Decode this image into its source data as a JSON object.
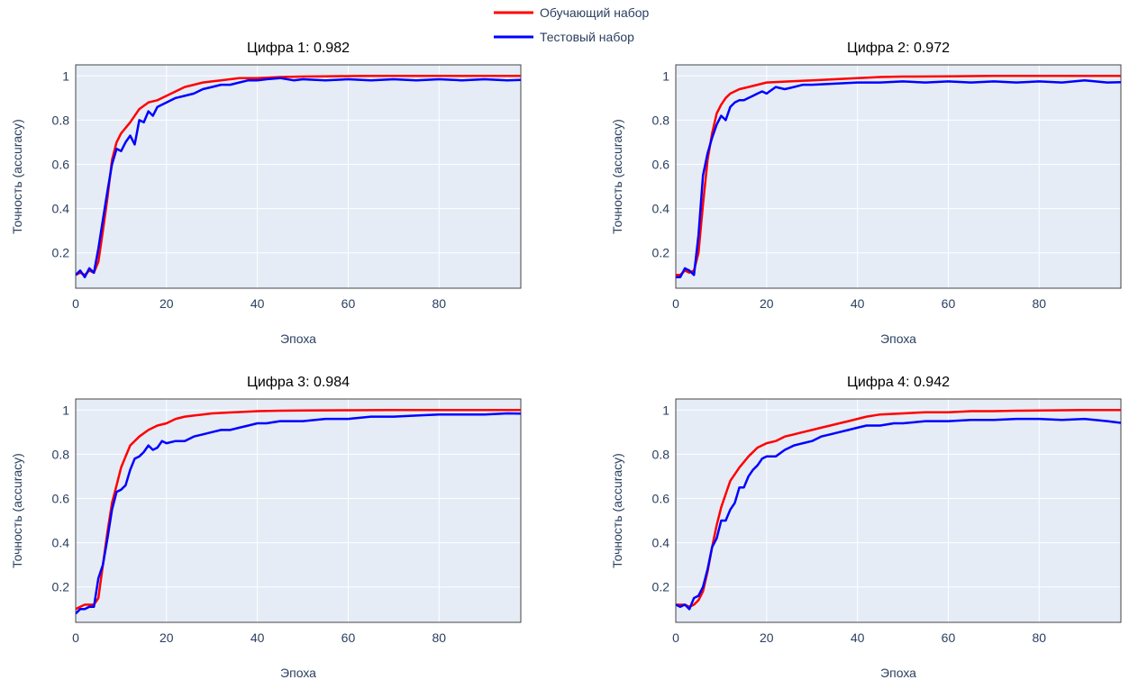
{
  "legend": {
    "position": "top-center",
    "items": [
      {
        "label": "Обучающий набор",
        "color": "#ff0000"
      },
      {
        "label": "Тестовый набор",
        "color": "#0000ff"
      }
    ]
  },
  "colors": {
    "plot_background": "#e5ecf6",
    "grid": "#ffffff",
    "axis_text": "#2a3f5f",
    "train": "#ff0000",
    "test": "#0000ff"
  },
  "chart_data": [
    {
      "type": "line",
      "title": "Цифра 1: 0.982",
      "xlabel": "Эпоха",
      "ylabel": "Точность (accuracy)",
      "xlim": [
        0,
        98
      ],
      "ylim": [
        0.04,
        1.05
      ],
      "xticks": [
        0,
        20,
        40,
        60,
        80
      ],
      "yticks": [
        0.2,
        0.4,
        0.6,
        0.8,
        1
      ],
      "ytick_labels": [
        "0.2",
        "0.4",
        "0.6",
        "0.8",
        "1"
      ],
      "grid": true,
      "series": [
        {
          "name": "Обучающий набор",
          "x": [
            0,
            1,
            2,
            3,
            4,
            5,
            6,
            7,
            8,
            9,
            10,
            12,
            14,
            16,
            18,
            20,
            22,
            24,
            26,
            28,
            30,
            32,
            34,
            36,
            38,
            40,
            45,
            50,
            55,
            60,
            65,
            70,
            75,
            80,
            85,
            90,
            95,
            98
          ],
          "values": [
            0.1,
            0.11,
            0.1,
            0.12,
            0.11,
            0.16,
            0.3,
            0.45,
            0.62,
            0.7,
            0.74,
            0.79,
            0.85,
            0.88,
            0.89,
            0.91,
            0.93,
            0.95,
            0.96,
            0.97,
            0.975,
            0.98,
            0.985,
            0.99,
            0.99,
            0.99,
            0.995,
            0.997,
            0.998,
            0.999,
            1.0,
            1.0,
            1.0,
            1.0,
            1.0,
            1.0,
            1.0,
            1.0
          ]
        },
        {
          "name": "Тестовый набор",
          "x": [
            0,
            1,
            2,
            3,
            4,
            5,
            6,
            7,
            8,
            9,
            10,
            11,
            12,
            13,
            14,
            15,
            16,
            17,
            18,
            20,
            22,
            24,
            26,
            28,
            30,
            32,
            34,
            36,
            38,
            40,
            42,
            45,
            48,
            50,
            55,
            60,
            65,
            70,
            75,
            80,
            85,
            90,
            95,
            98
          ],
          "values": [
            0.1,
            0.12,
            0.09,
            0.13,
            0.11,
            0.22,
            0.35,
            0.48,
            0.6,
            0.67,
            0.66,
            0.7,
            0.73,
            0.69,
            0.8,
            0.79,
            0.84,
            0.82,
            0.86,
            0.88,
            0.9,
            0.91,
            0.92,
            0.94,
            0.95,
            0.96,
            0.96,
            0.97,
            0.98,
            0.98,
            0.985,
            0.99,
            0.98,
            0.985,
            0.98,
            0.985,
            0.98,
            0.985,
            0.98,
            0.985,
            0.98,
            0.985,
            0.98,
            0.982
          ]
        }
      ]
    },
    {
      "type": "line",
      "title": "Цифра 2: 0.972",
      "xlabel": "Эпоха",
      "ylabel": "Точность (accuracy)",
      "xlim": [
        0,
        98
      ],
      "ylim": [
        0.04,
        1.05
      ],
      "xticks": [
        0,
        20,
        40,
        60,
        80
      ],
      "yticks": [
        0.2,
        0.4,
        0.6,
        0.8,
        1
      ],
      "ytick_labels": [
        "0.2",
        "0.4",
        "0.6",
        "0.8",
        "1"
      ],
      "grid": true,
      "series": [
        {
          "name": "Обучающий набор",
          "x": [
            0,
            1,
            2,
            3,
            4,
            5,
            6,
            7,
            8,
            9,
            10,
            11,
            12,
            14,
            16,
            18,
            20,
            25,
            30,
            35,
            40,
            45,
            50,
            60,
            70,
            80,
            90,
            98
          ],
          "values": [
            0.1,
            0.1,
            0.12,
            0.11,
            0.12,
            0.2,
            0.42,
            0.62,
            0.74,
            0.83,
            0.87,
            0.9,
            0.92,
            0.94,
            0.95,
            0.96,
            0.97,
            0.975,
            0.98,
            0.985,
            0.99,
            0.995,
            0.997,
            0.998,
            1.0,
            1.0,
            1.0,
            1.0
          ]
        },
        {
          "name": "Тестовый набор",
          "x": [
            0,
            1,
            2,
            3,
            4,
            5,
            6,
            7,
            8,
            9,
            10,
            11,
            12,
            13,
            14,
            15,
            16,
            17,
            18,
            19,
            20,
            22,
            24,
            26,
            28,
            30,
            35,
            40,
            45,
            50,
            55,
            60,
            65,
            70,
            75,
            80,
            85,
            90,
            95,
            98
          ],
          "values": [
            0.09,
            0.09,
            0.13,
            0.12,
            0.1,
            0.28,
            0.55,
            0.65,
            0.72,
            0.78,
            0.82,
            0.8,
            0.86,
            0.88,
            0.89,
            0.89,
            0.9,
            0.91,
            0.92,
            0.93,
            0.92,
            0.95,
            0.94,
            0.95,
            0.96,
            0.96,
            0.965,
            0.97,
            0.97,
            0.975,
            0.97,
            0.975,
            0.97,
            0.975,
            0.97,
            0.975,
            0.97,
            0.98,
            0.97,
            0.972
          ]
        }
      ]
    },
    {
      "type": "line",
      "title": "Цифра 3: 0.984",
      "xlabel": "Эпоха",
      "ylabel": "Точность (accuracy)",
      "xlim": [
        0,
        98
      ],
      "ylim": [
        0.04,
        1.05
      ],
      "xticks": [
        0,
        20,
        40,
        60,
        80
      ],
      "yticks": [
        0.2,
        0.4,
        0.6,
        0.8,
        1
      ],
      "ytick_labels": [
        "0.2",
        "0.4",
        "0.6",
        "0.8",
        "1"
      ],
      "grid": true,
      "series": [
        {
          "name": "Обучающий набор",
          "x": [
            0,
            1,
            2,
            3,
            4,
            5,
            6,
            7,
            8,
            9,
            10,
            11,
            12,
            14,
            16,
            18,
            20,
            22,
            24,
            26,
            28,
            30,
            35,
            40,
            45,
            50,
            60,
            70,
            80,
            90,
            98
          ],
          "values": [
            0.1,
            0.11,
            0.12,
            0.12,
            0.12,
            0.15,
            0.3,
            0.45,
            0.58,
            0.66,
            0.74,
            0.79,
            0.84,
            0.88,
            0.91,
            0.93,
            0.94,
            0.96,
            0.97,
            0.975,
            0.98,
            0.985,
            0.99,
            0.995,
            0.997,
            0.998,
            0.999,
            1.0,
            1.0,
            1.0,
            1.0
          ]
        },
        {
          "name": "Тестовый набор",
          "x": [
            0,
            1,
            2,
            3,
            4,
            5,
            6,
            7,
            8,
            9,
            10,
            11,
            12,
            13,
            14,
            15,
            16,
            17,
            18,
            19,
            20,
            22,
            24,
            26,
            28,
            30,
            32,
            34,
            36,
            38,
            40,
            42,
            45,
            50,
            55,
            60,
            65,
            70,
            75,
            80,
            85,
            90,
            95,
            98
          ],
          "values": [
            0.08,
            0.1,
            0.1,
            0.11,
            0.11,
            0.24,
            0.3,
            0.42,
            0.55,
            0.63,
            0.64,
            0.66,
            0.73,
            0.78,
            0.79,
            0.81,
            0.84,
            0.82,
            0.83,
            0.86,
            0.85,
            0.86,
            0.86,
            0.88,
            0.89,
            0.9,
            0.91,
            0.91,
            0.92,
            0.93,
            0.94,
            0.94,
            0.95,
            0.95,
            0.96,
            0.96,
            0.97,
            0.97,
            0.975,
            0.98,
            0.98,
            0.98,
            0.985,
            0.984
          ]
        }
      ]
    },
    {
      "type": "line",
      "title": "Цифра 4: 0.942",
      "xlabel": "Эпоха",
      "ylabel": "Точность (accuracy)",
      "xlim": [
        0,
        98
      ],
      "ylim": [
        0.04,
        1.05
      ],
      "xticks": [
        0,
        20,
        40,
        60,
        80
      ],
      "yticks": [
        0.2,
        0.4,
        0.6,
        0.8,
        1
      ],
      "ytick_labels": [
        "0.2",
        "0.4",
        "0.6",
        "0.8",
        "1"
      ],
      "grid": true,
      "series": [
        {
          "name": "Обучающий набор",
          "x": [
            0,
            1,
            2,
            3,
            4,
            5,
            6,
            7,
            8,
            9,
            10,
            11,
            12,
            14,
            16,
            18,
            20,
            22,
            24,
            26,
            28,
            30,
            32,
            34,
            36,
            38,
            40,
            42,
            45,
            50,
            55,
            60,
            65,
            70,
            75,
            80,
            85,
            90,
            95,
            98
          ],
          "values": [
            0.12,
            0.12,
            0.12,
            0.11,
            0.12,
            0.14,
            0.18,
            0.27,
            0.38,
            0.48,
            0.56,
            0.62,
            0.68,
            0.74,
            0.79,
            0.83,
            0.85,
            0.86,
            0.88,
            0.89,
            0.9,
            0.91,
            0.92,
            0.93,
            0.94,
            0.95,
            0.96,
            0.97,
            0.98,
            0.985,
            0.99,
            0.99,
            0.995,
            0.995,
            0.997,
            0.998,
            0.999,
            1.0,
            1.0,
            1.0
          ]
        },
        {
          "name": "Тестовый набор",
          "x": [
            0,
            1,
            2,
            3,
            4,
            5,
            6,
            7,
            8,
            9,
            10,
            11,
            12,
            13,
            14,
            15,
            16,
            17,
            18,
            19,
            20,
            22,
            24,
            26,
            28,
            30,
            32,
            34,
            36,
            38,
            40,
            42,
            45,
            48,
            50,
            55,
            60,
            65,
            70,
            75,
            80,
            85,
            90,
            95,
            98
          ],
          "values": [
            0.12,
            0.11,
            0.12,
            0.1,
            0.15,
            0.16,
            0.2,
            0.28,
            0.38,
            0.42,
            0.5,
            0.5,
            0.55,
            0.58,
            0.65,
            0.65,
            0.7,
            0.73,
            0.75,
            0.78,
            0.79,
            0.79,
            0.82,
            0.84,
            0.85,
            0.86,
            0.88,
            0.89,
            0.9,
            0.91,
            0.92,
            0.93,
            0.93,
            0.94,
            0.94,
            0.95,
            0.95,
            0.955,
            0.955,
            0.96,
            0.96,
            0.955,
            0.96,
            0.95,
            0.942
          ]
        }
      ]
    }
  ]
}
